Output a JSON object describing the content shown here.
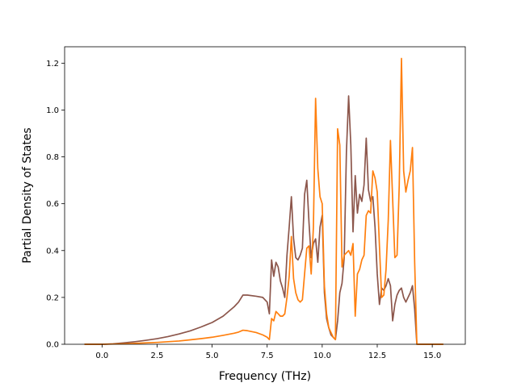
{
  "chart_data": {
    "type": "line",
    "title": "",
    "xlabel": "Frequency (THz)",
    "ylabel": "Partial Density of States",
    "xlim": [
      -1.7,
      16.5
    ],
    "ylim": [
      0.0,
      1.27
    ],
    "grid": false,
    "legend": "none",
    "xticks": [
      0.0,
      2.5,
      5.0,
      7.5,
      10.0,
      12.5,
      15.0
    ],
    "xtick_labels": [
      "0.0",
      "2.5",
      "5.0",
      "7.5",
      "10.0",
      "12.5",
      "15.0"
    ],
    "yticks": [
      0.0,
      0.2,
      0.4,
      0.6,
      0.8,
      1.0,
      1.2
    ],
    "ytick_labels": [
      "0.0",
      "0.2",
      "0.4",
      "0.6",
      "0.8",
      "1.0",
      "1.2"
    ],
    "series": [
      {
        "color": "#8c564b",
        "x": [
          -0.8,
          0.0,
          0.5,
          1.0,
          1.5,
          2.0,
          2.5,
          3.0,
          3.5,
          4.0,
          4.5,
          5.0,
          5.5,
          6.0,
          6.2,
          6.4,
          6.6,
          7.0,
          7.3,
          7.5,
          7.6,
          7.7,
          7.8,
          7.9,
          8.0,
          8.1,
          8.2,
          8.3,
          8.4,
          8.5,
          8.6,
          8.7,
          8.8,
          8.9,
          9.0,
          9.1,
          9.2,
          9.3,
          9.4,
          9.5,
          9.6,
          9.7,
          9.8,
          9.9,
          10.0,
          10.1,
          10.2,
          10.3,
          10.4,
          10.5,
          10.6,
          10.7,
          10.8,
          10.9,
          11.0,
          11.1,
          11.2,
          11.3,
          11.4,
          11.5,
          11.6,
          11.7,
          11.8,
          11.9,
          12.0,
          12.1,
          12.2,
          12.3,
          12.4,
          12.5,
          12.6,
          12.7,
          12.8,
          12.9,
          13.0,
          13.1,
          13.2,
          13.3,
          13.4,
          13.5,
          13.6,
          13.7,
          13.8,
          13.9,
          14.0,
          14.1,
          14.2,
          14.3,
          14.4,
          14.5,
          14.6,
          14.8,
          15.5
        ],
        "y": [
          0.0,
          0.0,
          0.002,
          0.006,
          0.011,
          0.017,
          0.024,
          0.033,
          0.044,
          0.057,
          0.074,
          0.093,
          0.12,
          0.16,
          0.18,
          0.21,
          0.21,
          0.205,
          0.2,
          0.18,
          0.13,
          0.36,
          0.29,
          0.35,
          0.33,
          0.27,
          0.24,
          0.2,
          0.38,
          0.5,
          0.63,
          0.45,
          0.37,
          0.36,
          0.38,
          0.41,
          0.64,
          0.7,
          0.52,
          0.37,
          0.43,
          0.45,
          0.35,
          0.5,
          0.55,
          0.22,
          0.11,
          0.07,
          0.04,
          0.03,
          0.02,
          0.1,
          0.22,
          0.26,
          0.37,
          0.82,
          1.06,
          0.85,
          0.48,
          0.72,
          0.56,
          0.64,
          0.61,
          0.68,
          0.88,
          0.66,
          0.61,
          0.63,
          0.5,
          0.3,
          0.17,
          0.24,
          0.23,
          0.25,
          0.28,
          0.25,
          0.1,
          0.17,
          0.21,
          0.23,
          0.24,
          0.2,
          0.18,
          0.2,
          0.22,
          0.25,
          0.15,
          0.0,
          0.0,
          0.0,
          0.0,
          0.0,
          0.0
        ]
      },
      {
        "color": "#ff7f0e",
        "x": [
          -0.8,
          0.0,
          0.5,
          1.0,
          1.5,
          2.0,
          2.5,
          3.0,
          3.5,
          4.0,
          4.5,
          5.0,
          5.5,
          6.0,
          6.2,
          6.4,
          6.6,
          7.0,
          7.3,
          7.5,
          7.6,
          7.7,
          7.8,
          7.9,
          8.0,
          8.1,
          8.2,
          8.3,
          8.4,
          8.5,
          8.6,
          8.7,
          8.8,
          8.9,
          9.0,
          9.1,
          9.2,
          9.3,
          9.4,
          9.5,
          9.6,
          9.7,
          9.8,
          9.9,
          10.0,
          10.1,
          10.2,
          10.3,
          10.4,
          10.5,
          10.6,
          10.7,
          10.8,
          10.9,
          11.0,
          11.1,
          11.2,
          11.3,
          11.4,
          11.5,
          11.6,
          11.7,
          11.8,
          11.9,
          12.0,
          12.1,
          12.2,
          12.3,
          12.4,
          12.5,
          12.6,
          12.7,
          12.8,
          12.9,
          13.0,
          13.1,
          13.2,
          13.3,
          13.4,
          13.5,
          13.6,
          13.7,
          13.8,
          13.9,
          14.0,
          14.1,
          14.2,
          14.3,
          14.4,
          14.5,
          14.6,
          14.8,
          15.5
        ],
        "y": [
          0.0,
          0.0,
          0.001,
          0.002,
          0.004,
          0.006,
          0.008,
          0.011,
          0.014,
          0.019,
          0.024,
          0.03,
          0.038,
          0.047,
          0.052,
          0.06,
          0.058,
          0.05,
          0.04,
          0.03,
          0.02,
          0.11,
          0.1,
          0.14,
          0.13,
          0.12,
          0.12,
          0.13,
          0.2,
          0.29,
          0.46,
          0.28,
          0.22,
          0.19,
          0.18,
          0.19,
          0.3,
          0.41,
          0.42,
          0.3,
          0.5,
          1.05,
          0.75,
          0.63,
          0.6,
          0.25,
          0.13,
          0.07,
          0.05,
          0.03,
          0.02,
          0.92,
          0.85,
          0.33,
          0.38,
          0.39,
          0.4,
          0.38,
          0.43,
          0.12,
          0.3,
          0.32,
          0.36,
          0.38,
          0.55,
          0.57,
          0.56,
          0.74,
          0.71,
          0.65,
          0.42,
          0.2,
          0.21,
          0.32,
          0.53,
          0.87,
          0.62,
          0.37,
          0.38,
          0.68,
          1.22,
          0.74,
          0.65,
          0.7,
          0.74,
          0.84,
          0.35,
          0.0,
          0.0,
          0.0,
          0.0,
          0.0,
          0.0
        ]
      }
    ]
  }
}
